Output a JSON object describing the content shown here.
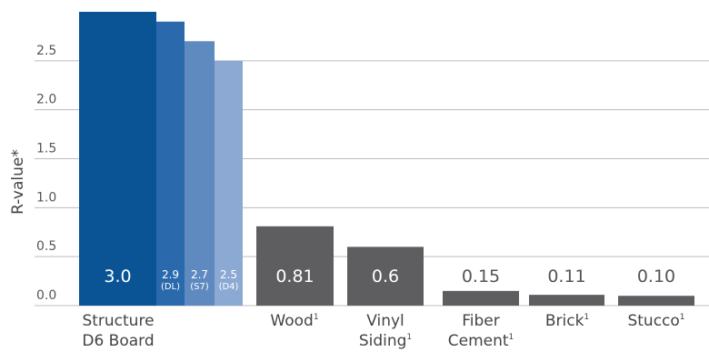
{
  "chart_data": {
    "type": "bar",
    "title": "",
    "ylabel": "R-value*",
    "ylim": [
      0,
      3.0
    ],
    "y_ticks": [
      "0.0",
      "0.5",
      "1.0",
      "1.5",
      "2.0",
      "2.5"
    ],
    "grid": true,
    "bars": [
      {
        "group": "Structure D6 Board",
        "value": 3.0,
        "label": "3.0",
        "sub": "",
        "color": "#0a5495"
      },
      {
        "group": "Structure D6 Board",
        "value": 2.9,
        "label": "2.9",
        "sub": "(DL)",
        "color": "#2a6aac"
      },
      {
        "group": "Structure D6 Board",
        "value": 2.7,
        "label": "2.7",
        "sub": "(S7)",
        "color": "#5e8ac0"
      },
      {
        "group": "Structure D6 Board",
        "value": 2.5,
        "label": "2.5",
        "sub": "(D4)",
        "color": "#8ba9d3"
      },
      {
        "group": "Wood",
        "value": 0.81,
        "label": "0.81",
        "sub": "",
        "color": "#5e5e60"
      },
      {
        "group": "Vinyl Siding",
        "value": 0.6,
        "label": "0.6",
        "sub": "",
        "color": "#5e5e60"
      },
      {
        "group": "Fiber Cement",
        "value": 0.15,
        "label": "0.15",
        "sub": "",
        "color": "#5e5e60"
      },
      {
        "group": "Brick",
        "value": 0.11,
        "label": "0.11",
        "sub": "",
        "color": "#5e5e60"
      },
      {
        "group": "Stucco",
        "value": 0.1,
        "label": "0.10",
        "sub": "",
        "color": "#5e5e60"
      }
    ],
    "categories": [
      {
        "lines": [
          "Structure",
          "D6 Board"
        ],
        "sup": ""
      },
      {
        "lines": [
          "Wood"
        ],
        "sup": "1"
      },
      {
        "lines": [
          "Vinyl",
          "Siding"
        ],
        "sup": "1"
      },
      {
        "lines": [
          "Fiber",
          "Cement"
        ],
        "sup": "1"
      },
      {
        "lines": [
          "Brick"
        ],
        "sup": "1"
      },
      {
        "lines": [
          "Stucco"
        ],
        "sup": "1"
      }
    ],
    "colors": {
      "grid": "#bcbcbc",
      "inside_label": "#ffffff",
      "outside_label": "#555555"
    }
  }
}
